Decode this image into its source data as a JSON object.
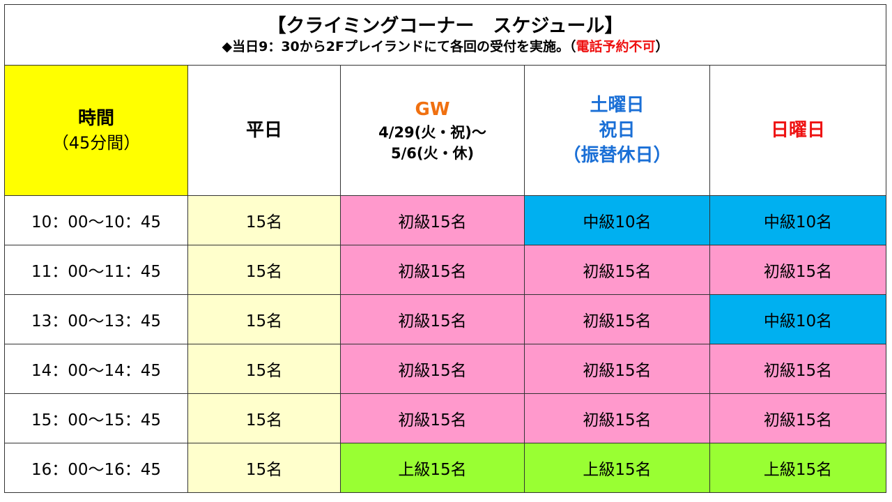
{
  "title": "【クライミングコーナー　スケジュール】",
  "subtitle_main": "◆当日9：30から2Fプレイランドにて各回の受付を実施。（",
  "subtitle_red": "電話予約不可",
  "subtitle_end": "）",
  "header": {
    "time_label": "時間",
    "time_sub": "（45分間）",
    "weekday": "平日",
    "gw_label": "GW",
    "gw_range1": "4/29(火・祝)～",
    "gw_range2": "5/6(火・休)",
    "sat_line1": "土曜日",
    "sat_line2": "祝日",
    "sat_line3": "（振替休日）",
    "sunday": "日曜日"
  },
  "rows": [
    {
      "time": "10：00～10：45",
      "weekday": "15名",
      "gw": "初級15名",
      "sat": "中級10名",
      "sun": "中級10名"
    },
    {
      "time": "11：00～11：45",
      "weekday": "15名",
      "gw": "初級15名",
      "sat": "初級15名",
      "sun": "初級15名"
    },
    {
      "time": "13：00～13：45",
      "weekday": "15名",
      "gw": "初級15名",
      "sat": "初級15名",
      "sun": "中級10名"
    },
    {
      "time": "14：00～14：45",
      "weekday": "15名",
      "gw": "初級15名",
      "sat": "初級15名",
      "sun": "初級15名"
    },
    {
      "time": "15：00～15：45",
      "weekday": "15名",
      "gw": "初級15名",
      "sat": "初級15名",
      "sun": "初級15名"
    },
    {
      "time": "16：00～16：45",
      "weekday": "15名",
      "gw": "上級15名",
      "sat": "上級15名",
      "sun": "上級15名"
    }
  ],
  "colors": {
    "weekday_bg": "#ffffcc",
    "beginner_bg": "#ff99cc",
    "intermediate_bg": "#00b0f0",
    "advanced_bg": "#99ff33",
    "time_header_bg": "#ffff00"
  }
}
